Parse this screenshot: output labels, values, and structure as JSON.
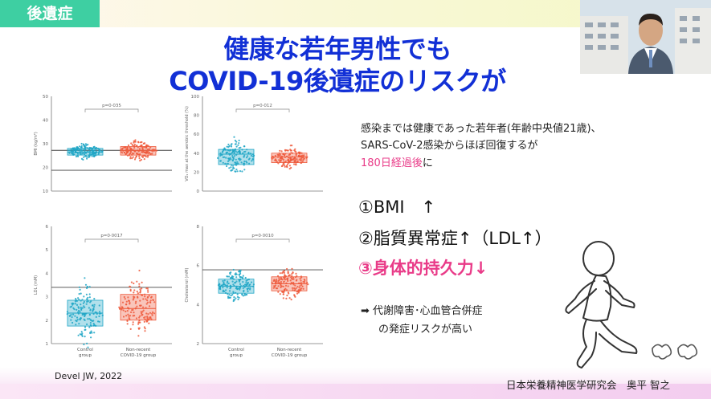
{
  "slide": {
    "tag": "後遺症",
    "title_line1": "健康な若年男性でも",
    "title_line2": "COVID-19後遺症のリスクが"
  },
  "figure": {
    "citation_author": "Devel JW,",
    "citation_year": "2022",
    "panels": [
      {
        "ylabel": "BMI (kg/m²)",
        "yticks": [
          "50",
          "40",
          "30",
          "20",
          "10"
        ],
        "pvalue": "p=0·035"
      },
      {
        "ylabel": "VO₂ max at the aerobic threshold (%)",
        "yticks": [
          "100",
          "80",
          "60",
          "40",
          "20",
          "0"
        ],
        "pvalue": "p=0·012"
      },
      {
        "ylabel": "LDL (mM)",
        "yticks": [
          "6",
          "5",
          "4",
          "3",
          "2",
          "1"
        ],
        "pvalue": "p=0·0017"
      },
      {
        "ylabel": "Cholesterol (mM)",
        "yticks": [
          "8",
          "6",
          "4",
          "2"
        ],
        "pvalue": "p=0·0010"
      }
    ],
    "groups": {
      "control_line1": "Control",
      "control_line2": "group",
      "covid_line1": "Non-recent",
      "covid_line2": "COVID-19 group"
    },
    "colors": {
      "control": "#1fa6c6",
      "covid": "#ee5a3c"
    }
  },
  "description": {
    "line1": "感染までは健康であった若年者(年齢中央値21歳)、",
    "line2": "SARS-CoV-2感染からほぼ回復するが",
    "line3": "180日経過後に",
    "line3_prefix": "180日経過後",
    "line3_suffix": "に"
  },
  "points": {
    "p1": "①BMI　↑",
    "p2": "②脂質異常症↑（LDL↑）",
    "p3": "③身体的持久力↓"
  },
  "note": {
    "arrow": "➡",
    "line1": "代謝障害･心血管合併症",
    "line2": "の発症リスクが高い"
  },
  "footer": "日本栄養精神医学研究会　奥平 智之"
}
